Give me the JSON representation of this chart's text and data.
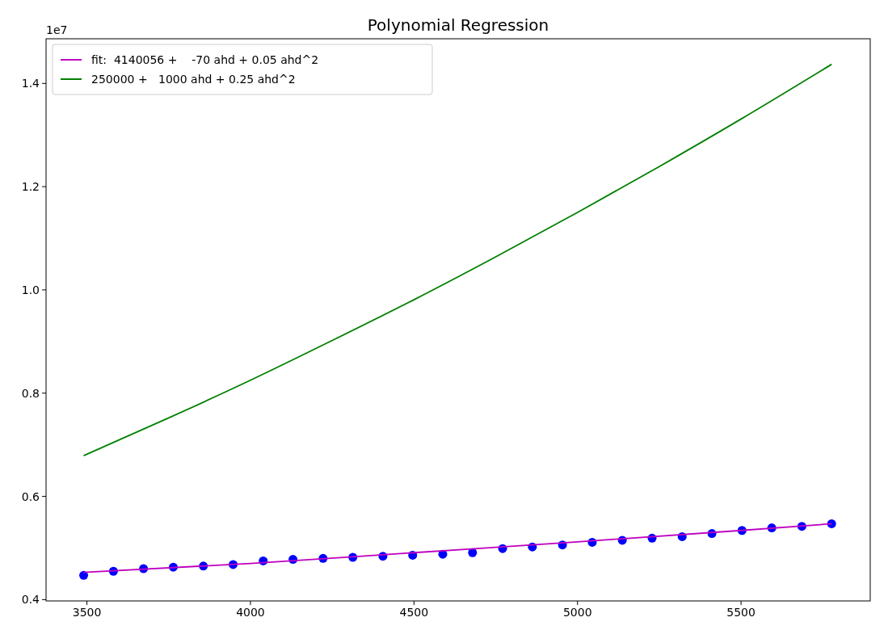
{
  "chart_data": {
    "type": "line",
    "title": "Polynomial Regression",
    "annotations": [
      "1e7"
    ],
    "series": [
      {
        "type": "scatter",
        "color": "#0000ff",
        "marker": "circle",
        "x": [
          3490,
          3581,
          3673,
          3764,
          3856,
          3947,
          4039,
          4130,
          4222,
          4313,
          4405,
          4496,
          4588,
          4679,
          4771,
          4862,
          4954,
          5045,
          5137,
          5228,
          5320,
          5411,
          5503,
          5594,
          5686,
          5777
        ],
        "values": [
          0.447,
          0.455,
          0.46,
          0.463,
          0.465,
          0.468,
          0.475,
          0.478,
          0.48,
          0.482,
          0.484,
          0.486,
          0.488,
          0.491,
          0.499,
          0.502,
          0.506,
          0.511,
          0.515,
          0.519,
          0.522,
          0.528,
          0.534,
          0.539,
          0.542,
          0.547
        ]
      },
      {
        "name": "fit:  4140056 +    -70 ahd + 0.05 ahd^2",
        "color": "#bf00bf",
        "marker": "none",
        "x": [
          3490,
          4000,
          4500,
          5000,
          5500,
          5777
        ],
        "values": [
          0.453,
          0.47,
          0.491,
          0.512,
          0.534,
          0.547
        ]
      },
      {
        "name": "250000 +   1000 ahd + 0.25 ahd^2",
        "color": "#008000",
        "marker": "none",
        "x": [
          3490,
          3750,
          4000,
          4250,
          4500,
          4750,
          5000,
          5250,
          5500,
          5777
        ],
        "values": [
          0.679,
          0.752,
          0.825,
          0.902,
          0.981,
          1.064,
          1.15,
          1.239,
          1.331,
          1.437
        ]
      }
    ],
    "xlim": [
      3375,
      5895
    ],
    "xticks": [
      3500,
      4000,
      4500,
      5000,
      5500
    ],
    "ylim": [
      0.3975,
      1.4865
    ],
    "yticks": [
      0.4,
      0.6,
      0.8,
      {
        "value": 1,
        "label": "1.0"
      },
      1.2,
      1.4
    ],
    "grid": false,
    "legend": "top left",
    "line_style": "solid"
  }
}
